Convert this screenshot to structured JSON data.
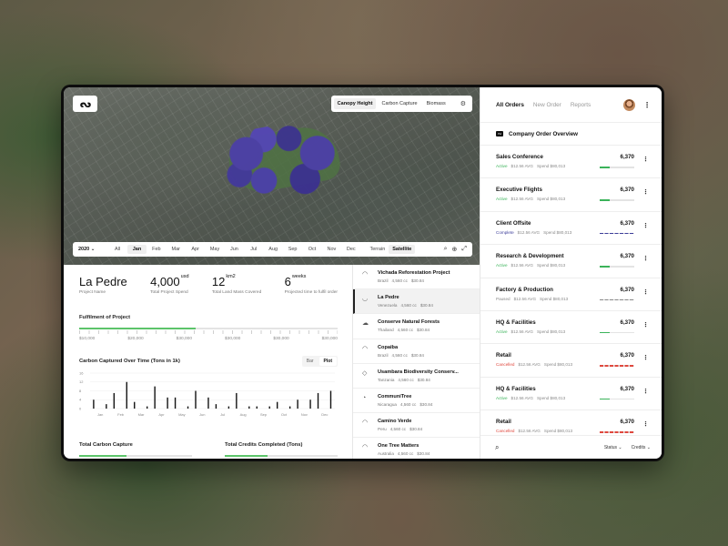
{
  "map": {
    "logo": "ᔓ",
    "layers": [
      "Canopy Height",
      "Carbon Capture",
      "Biomass"
    ],
    "active_layer": "Canopy Height",
    "year": "2020 ⌄",
    "months": [
      "All",
      "Jan",
      "Feb",
      "Mar",
      "Apr",
      "May",
      "Jun",
      "Jul",
      "Aug",
      "Sep",
      "Oct",
      "Nov",
      "Dec"
    ],
    "active_month": "Jan",
    "views": [
      "Terrain",
      "Satellite"
    ],
    "active_view": "Satellite"
  },
  "project": {
    "name": "La Pedre",
    "name_label": "Project Name",
    "spend": "4,000",
    "spend_unit": "usd",
    "spend_label": "Total Project Spend",
    "land": "12",
    "land_unit": "km2",
    "land_label": "Total Land Mass Covered",
    "time": "6",
    "time_unit": "weeks",
    "time_label": "Projected time to fulfil order"
  },
  "fulfilment": {
    "title": "Fulfilment of Project",
    "progress": 0.45,
    "scale": [
      "$10,000",
      "$20,000",
      "$30,000",
      "$30,000",
      "$30,000",
      "$30,000"
    ]
  },
  "carbon_chart": {
    "title": "Carbon Captured Over Time (Tons in 1k)",
    "toggle": [
      "Bar",
      "Plot"
    ],
    "active_toggle": "Plot"
  },
  "chart_data": {
    "type": "bar",
    "title": "Carbon Captured Over Time (Tons in 1k)",
    "categories": [
      "Jan",
      "Feb",
      "Mar",
      "Apr",
      "May",
      "Jun",
      "Jul",
      "Aug",
      "Sep",
      "Oct",
      "Nov",
      "Dec"
    ],
    "series": [
      {
        "values": [
          4,
          7,
          3,
          10,
          5,
          8,
          2,
          7,
          1,
          3,
          4,
          7
        ]
      },
      {
        "values": [
          2,
          12,
          1,
          5,
          1,
          5,
          1,
          1,
          1,
          1,
          4,
          8
        ]
      }
    ],
    "yticks": [
      0,
      4,
      8,
      12,
      16
    ],
    "ylim": [
      0,
      16
    ]
  },
  "bottom_cards": [
    {
      "title": "Total Carbon Capture",
      "progress": 0.42
    },
    {
      "title": "Total Credits Completed (Tons)",
      "progress": 0.38
    }
  ],
  "projects": [
    {
      "name": "Vichada Reforestation Project",
      "country": "Brazil",
      "cc": "4,560 cc",
      "price": "$30.84",
      "shape": "◠"
    },
    {
      "name": "La Pedre",
      "country": "Venezuela",
      "cc": "4,560 cc",
      "price": "$30.84",
      "shape": "◡"
    },
    {
      "name": "Conserve Natural Forests",
      "country": "Thailand",
      "cc": "4,560 cc",
      "price": "$30.84",
      "shape": "☁"
    },
    {
      "name": "Copaiba",
      "country": "Brazil",
      "cc": "4,560 cc",
      "price": "$30.84",
      "shape": "◠"
    },
    {
      "name": "Usambara Biodiversity Conserv...",
      "country": "Tanzania",
      "cc": "4,560 cc",
      "price": "$30.84",
      "shape": "◇"
    },
    {
      "name": "CommuniTree",
      "country": "Nicaragua",
      "cc": "4,560 cc",
      "price": "$30.84",
      "shape": "◔"
    },
    {
      "name": "Camino Verde",
      "country": "Peru",
      "cc": "4,560 cc",
      "price": "$30.84",
      "shape": "◠"
    },
    {
      "name": "One Tree Matters",
      "country": "Australia",
      "cc": "4,560 cc",
      "price": "$30.84",
      "shape": "◠"
    }
  ],
  "orders_panel": {
    "tabs": [
      "All Orders",
      "New Order",
      "Reports"
    ],
    "active_tab": "All Orders",
    "title": "Company Order Overview",
    "footer_filters": [
      "Status ⌄",
      "Credits ⌄"
    ]
  },
  "orders": [
    {
      "name": "Sales Conference",
      "status": "Active",
      "avg": "$12.56 AVG",
      "spend": "Spend $80,013",
      "value": "6,370",
      "color": "#3bb35a",
      "progress": 0.3,
      "dashed": false
    },
    {
      "name": "Executive Flights",
      "status": "Active",
      "avg": "$12.56 AVG",
      "spend": "Spend $80,013",
      "value": "6,370",
      "color": "#3bb35a",
      "progress": 0.3,
      "dashed": false
    },
    {
      "name": "Client Offsite",
      "status": "Complete",
      "avg": "$12.56 AVG",
      "spend": "Spend $80,013",
      "value": "6,370",
      "color": "#3c3d9a",
      "progress": 1,
      "dashed": true
    },
    {
      "name": "Research & Development",
      "status": "Active",
      "avg": "$12.56 AVG",
      "spend": "Spend $80,013",
      "value": "6,370",
      "color": "#3bb35a",
      "progress": 0.3,
      "dashed": false
    },
    {
      "name": "Factory & Production",
      "status": "Paused",
      "avg": "$12.56 AVG",
      "spend": "Spend $80,013",
      "value": "6,370",
      "color": "#888888",
      "progress": 1,
      "dashed": true
    },
    {
      "name": "HQ & Facilities",
      "status": "Active",
      "avg": "$12.56 AVG",
      "spend": "Spend $80,013",
      "value": "6,370",
      "color": "#3bb35a",
      "progress": 0.3,
      "dashed": false
    },
    {
      "name": "Retail",
      "status": "Cancelled",
      "avg": "$12.56 AVG",
      "spend": "Spend $80,013",
      "value": "6,370",
      "color": "#e0483e",
      "progress": 1,
      "dashed": true
    },
    {
      "name": "HQ & Facilities",
      "status": "Active",
      "avg": "$12.56 AVG",
      "spend": "Spend $80,013",
      "value": "6,370",
      "color": "#3bb35a",
      "progress": 0.3,
      "dashed": false
    },
    {
      "name": "Retail",
      "status": "Cancelled",
      "avg": "$12.56 AVG",
      "spend": "Spend $80,013",
      "value": "6,370",
      "color": "#e0483e",
      "progress": 1,
      "dashed": true
    }
  ]
}
